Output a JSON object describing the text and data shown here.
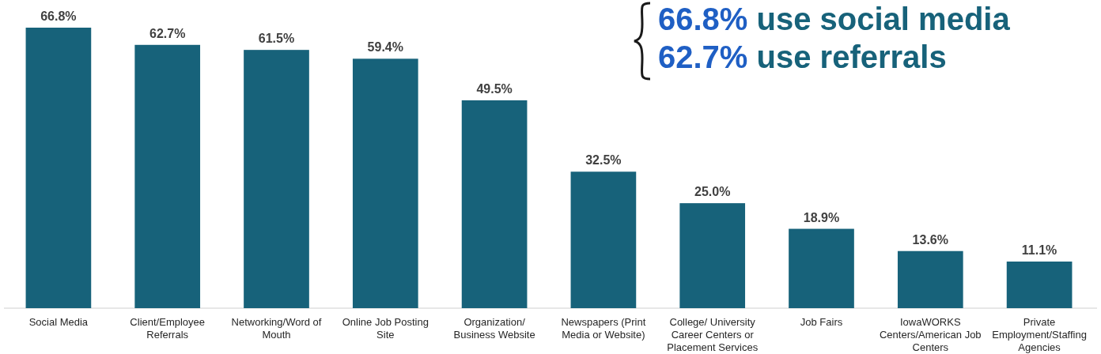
{
  "chart_data": {
    "type": "bar",
    "categories": [
      "Social Media",
      "Client/Employee Referrals",
      "Networking/Word of Mouth",
      "Online Job Posting Site",
      "Organization/ Business Website",
      "Newspapers (Print Media or Website)",
      "College/ University Career Centers or Placement Services",
      "Job Fairs",
      "IowaWORKS Centers/American Job Centers",
      "Private Employment/Staffing Agencies"
    ],
    "values": [
      66.8,
      62.7,
      61.5,
      59.4,
      49.5,
      32.5,
      25.0,
      18.9,
      13.6,
      11.1
    ],
    "color": "#17627a",
    "value_labels": [
      "66.8%",
      "62.7%",
      "61.5%",
      "59.4%",
      "49.5%",
      "32.5%",
      "25.0%",
      "18.9%",
      "13.6%",
      "11.1%"
    ],
    "annotations": [
      "66.8% use social media",
      "62.7% use referrals"
    ]
  }
}
